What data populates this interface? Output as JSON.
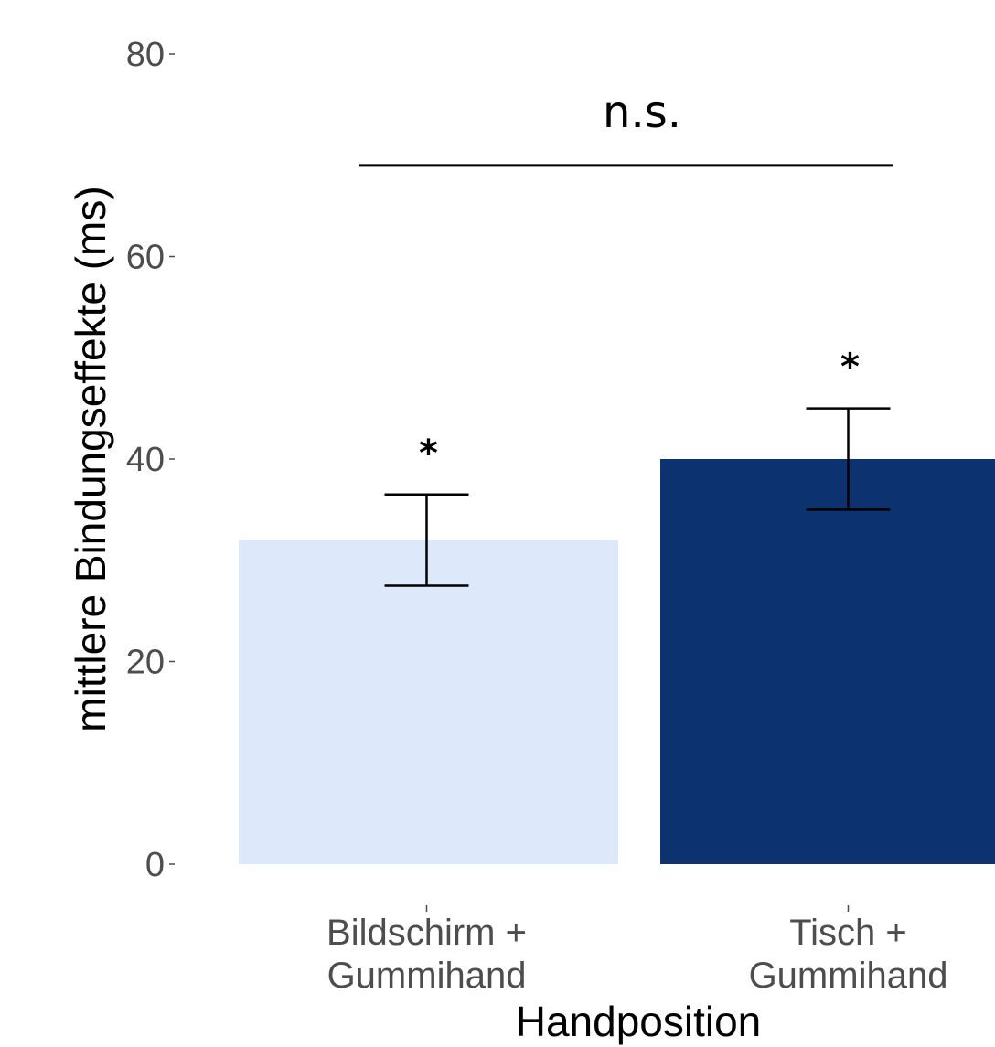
{
  "chart_data": {
    "type": "bar",
    "categories": [
      "Bildschirm +\nGummihand",
      "Tisch +\nGummihand"
    ],
    "values": [
      32,
      40
    ],
    "error_bars": [
      {
        "low": 27.5,
        "high": 36.5
      },
      {
        "low": 35,
        "high": 45
      }
    ],
    "bar_colors": [
      "#dde9fa",
      "#0c3370"
    ],
    "significance_markers": [
      "*",
      "*"
    ],
    "comparison": {
      "label": "n.s.",
      "y": 69
    },
    "xlabel": "Handposition",
    "ylabel": "mittlere Bindungseffekte (ms)",
    "yticks": [
      0,
      20,
      40,
      60,
      80
    ],
    "ylim": [
      0,
      80
    ],
    "grid": false,
    "legend": "none"
  }
}
